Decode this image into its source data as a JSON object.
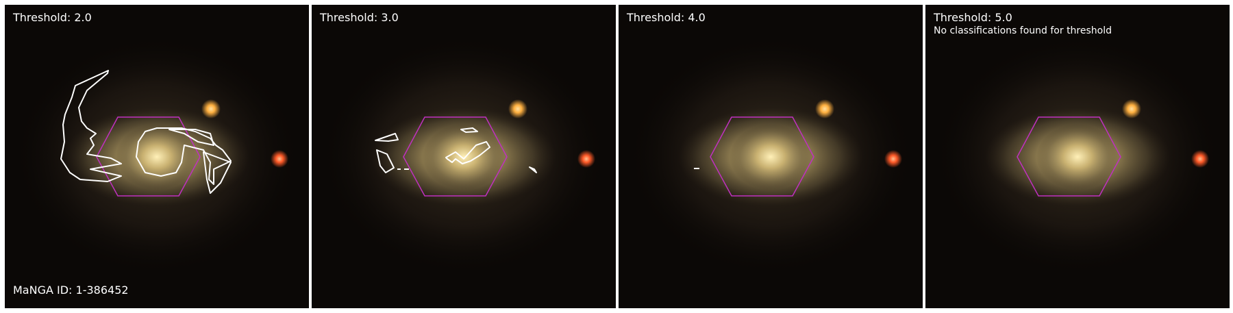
{
  "panels": [
    {
      "title": "Threshold: 2.0",
      "note": ""
    },
    {
      "title": "Threshold: 3.0",
      "note": ""
    },
    {
      "title": "Threshold: 4.0",
      "note": ""
    },
    {
      "title": "Threshold: 5.0",
      "note": "No classifications found for threshold"
    }
  ],
  "manga_id_label": "MaNGA ID: 1-386452",
  "colors": {
    "hexagon": "#c030c0",
    "contour": "#ffffff",
    "text": "#ffffff",
    "sky": "#0b0806",
    "galaxy_core": "#fff0b8",
    "star_orange": "#ffb040",
    "star_red": "#ff5a28"
  }
}
